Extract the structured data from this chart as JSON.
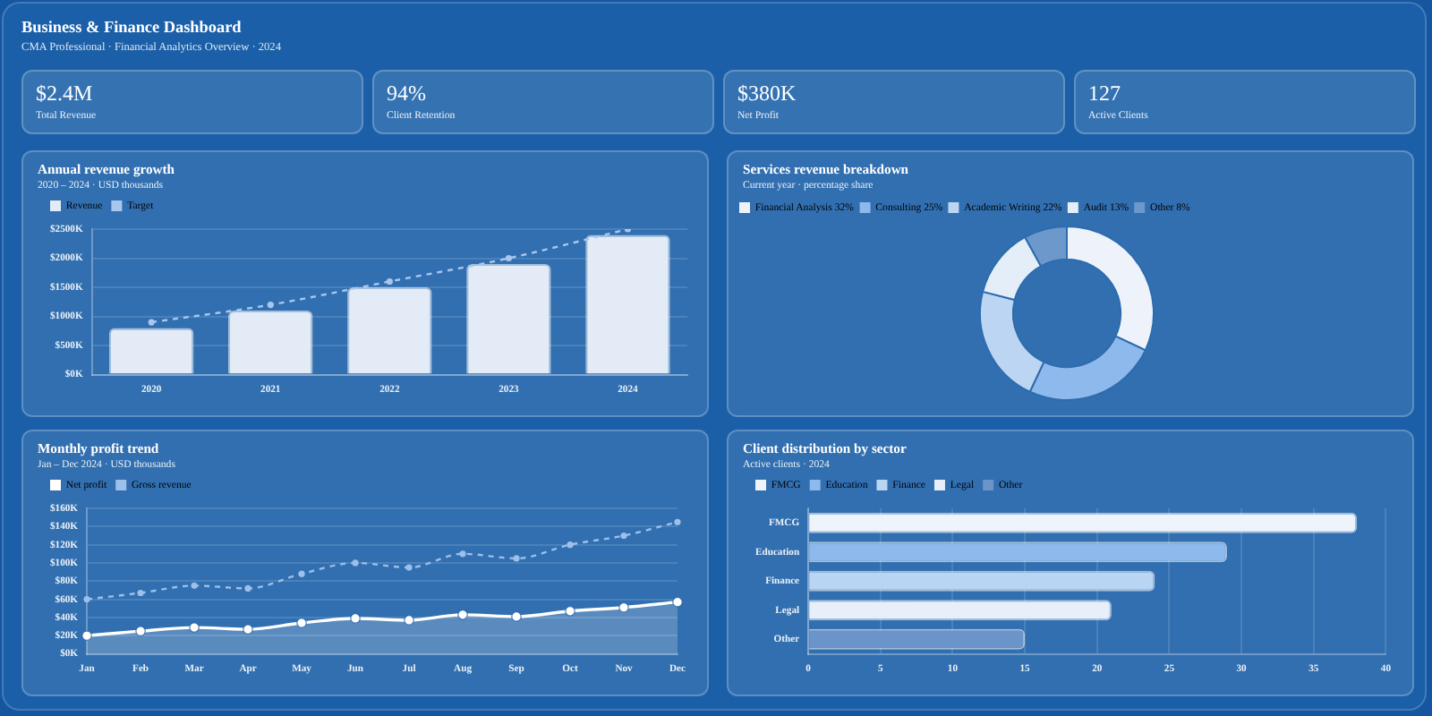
{
  "chart_data": [
    {
      "type": "other",
      "title": "Business & Finance Dashboard",
      "subtitle": "CMA Professional · Financial Analytics Overview · 2024",
      "annotations": [
        "$2.4M",
        "Total Revenue",
        "94%",
        "Client Retention",
        "$380K",
        "Net Profit",
        "127",
        "Active Clients"
      ]
    },
    {
      "type": "bar",
      "title": "Annual revenue growth",
      "subtitle": "2020 – 2024 · USD thousands",
      "categories": [
        "2020",
        "2021",
        "2022",
        "2023",
        "2024"
      ],
      "series": [
        {
          "name": "Revenue",
          "color": "#e3ebf6",
          "values": [
            800,
            1100,
            1500,
            1900,
            2400
          ]
        },
        {
          "name": "Target",
          "type": "line",
          "color": "#a8c7ee",
          "values": [
            900,
            1200,
            1600,
            2000,
            2500
          ],
          "line_style": "dashed",
          "marker": "circle"
        }
      ],
      "ylim": [
        0,
        2500
      ],
      "yticks": [
        {
          "value": 0,
          "label": "$0K"
        },
        {
          "value": 500,
          "label": "$500K"
        },
        {
          "value": 1000,
          "label": "$1000K"
        },
        {
          "value": 1500,
          "label": "$1500K"
        },
        {
          "value": 2000,
          "label": "$2000K"
        },
        {
          "value": 2500,
          "label": "$2500K"
        }
      ],
      "grid": "y",
      "legend": "top left"
    },
    {
      "type": "donut",
      "title": "Services revenue breakdown",
      "subtitle": "Current year · percentage share",
      "categories": [
        "Financial Analysis 32%",
        "Consulting 25%",
        "Academic Writing 22%",
        "Audit 13%",
        "Other 8%"
      ],
      "values": [
        32,
        25,
        22,
        13,
        8
      ],
      "colors": [
        "#eef3fb",
        "#8db9ec",
        "#bcd5f2",
        "#e4eef9",
        "#6d98cc"
      ],
      "legend": "top left"
    },
    {
      "type": "line",
      "title": "Monthly profit trend",
      "subtitle": "Jan – Dec 2024 · USD thousands",
      "categories": [
        "Jan",
        "Feb",
        "Mar",
        "Apr",
        "May",
        "Jun",
        "Jul",
        "Aug",
        "Sep",
        "Oct",
        "Nov",
        "Dec"
      ],
      "series": [
        {
          "name": "Net profit",
          "type": "area",
          "color": "#ffffff",
          "values": [
            20,
            25,
            29,
            27,
            34,
            39,
            37,
            43,
            41,
            47,
            51,
            57
          ],
          "marker": "circle"
        },
        {
          "name": "Gross revenue",
          "color": "#9dbfe9",
          "values": [
            60,
            67,
            75,
            72,
            88,
            100,
            95,
            110,
            105,
            120,
            130,
            145
          ],
          "line_style": "dashed",
          "marker": "circle"
        }
      ],
      "ylim": [
        0,
        160
      ],
      "yticks": [
        {
          "value": 0,
          "label": "$0K"
        },
        {
          "value": 20,
          "label": "$20K"
        },
        {
          "value": 40,
          "label": "$40K"
        },
        {
          "value": 60,
          "label": "$60K"
        },
        {
          "value": 80,
          "label": "$80K"
        },
        {
          "value": 100,
          "label": "$100K"
        },
        {
          "value": 120,
          "label": "$120K"
        },
        {
          "value": 140,
          "label": "$140K"
        },
        {
          "value": 160,
          "label": "$160K"
        }
      ],
      "grid": "y",
      "legend": "top left"
    },
    {
      "type": "bar",
      "orientation": "horizontal",
      "title": "Client distribution by sector",
      "subtitle": "Active clients · 2024",
      "categories": [
        "FMCG",
        "Education",
        "Finance",
        "Legal",
        "Other"
      ],
      "series": [
        {
          "name": "FMCG",
          "color": "#eef4fc",
          "values": [
            38,
            null,
            null,
            null,
            null
          ]
        },
        {
          "name": "Education",
          "color": "#8db9ec",
          "values": [
            null,
            29,
            null,
            null,
            null
          ]
        },
        {
          "name": "Finance",
          "color": "#bad5f3",
          "values": [
            null,
            null,
            24,
            null,
            null
          ]
        },
        {
          "name": "Legal",
          "color": "#e6effa",
          "values": [
            null,
            null,
            null,
            21,
            null
          ]
        },
        {
          "name": "Other",
          "color": "#6b95c8",
          "values": [
            null,
            null,
            null,
            null,
            15
          ]
        }
      ],
      "xlim": [
        0,
        40
      ],
      "xticks": [
        0,
        5,
        10,
        15,
        20,
        25,
        30,
        35,
        40
      ],
      "grid": "x",
      "legend": "top left"
    }
  ]
}
